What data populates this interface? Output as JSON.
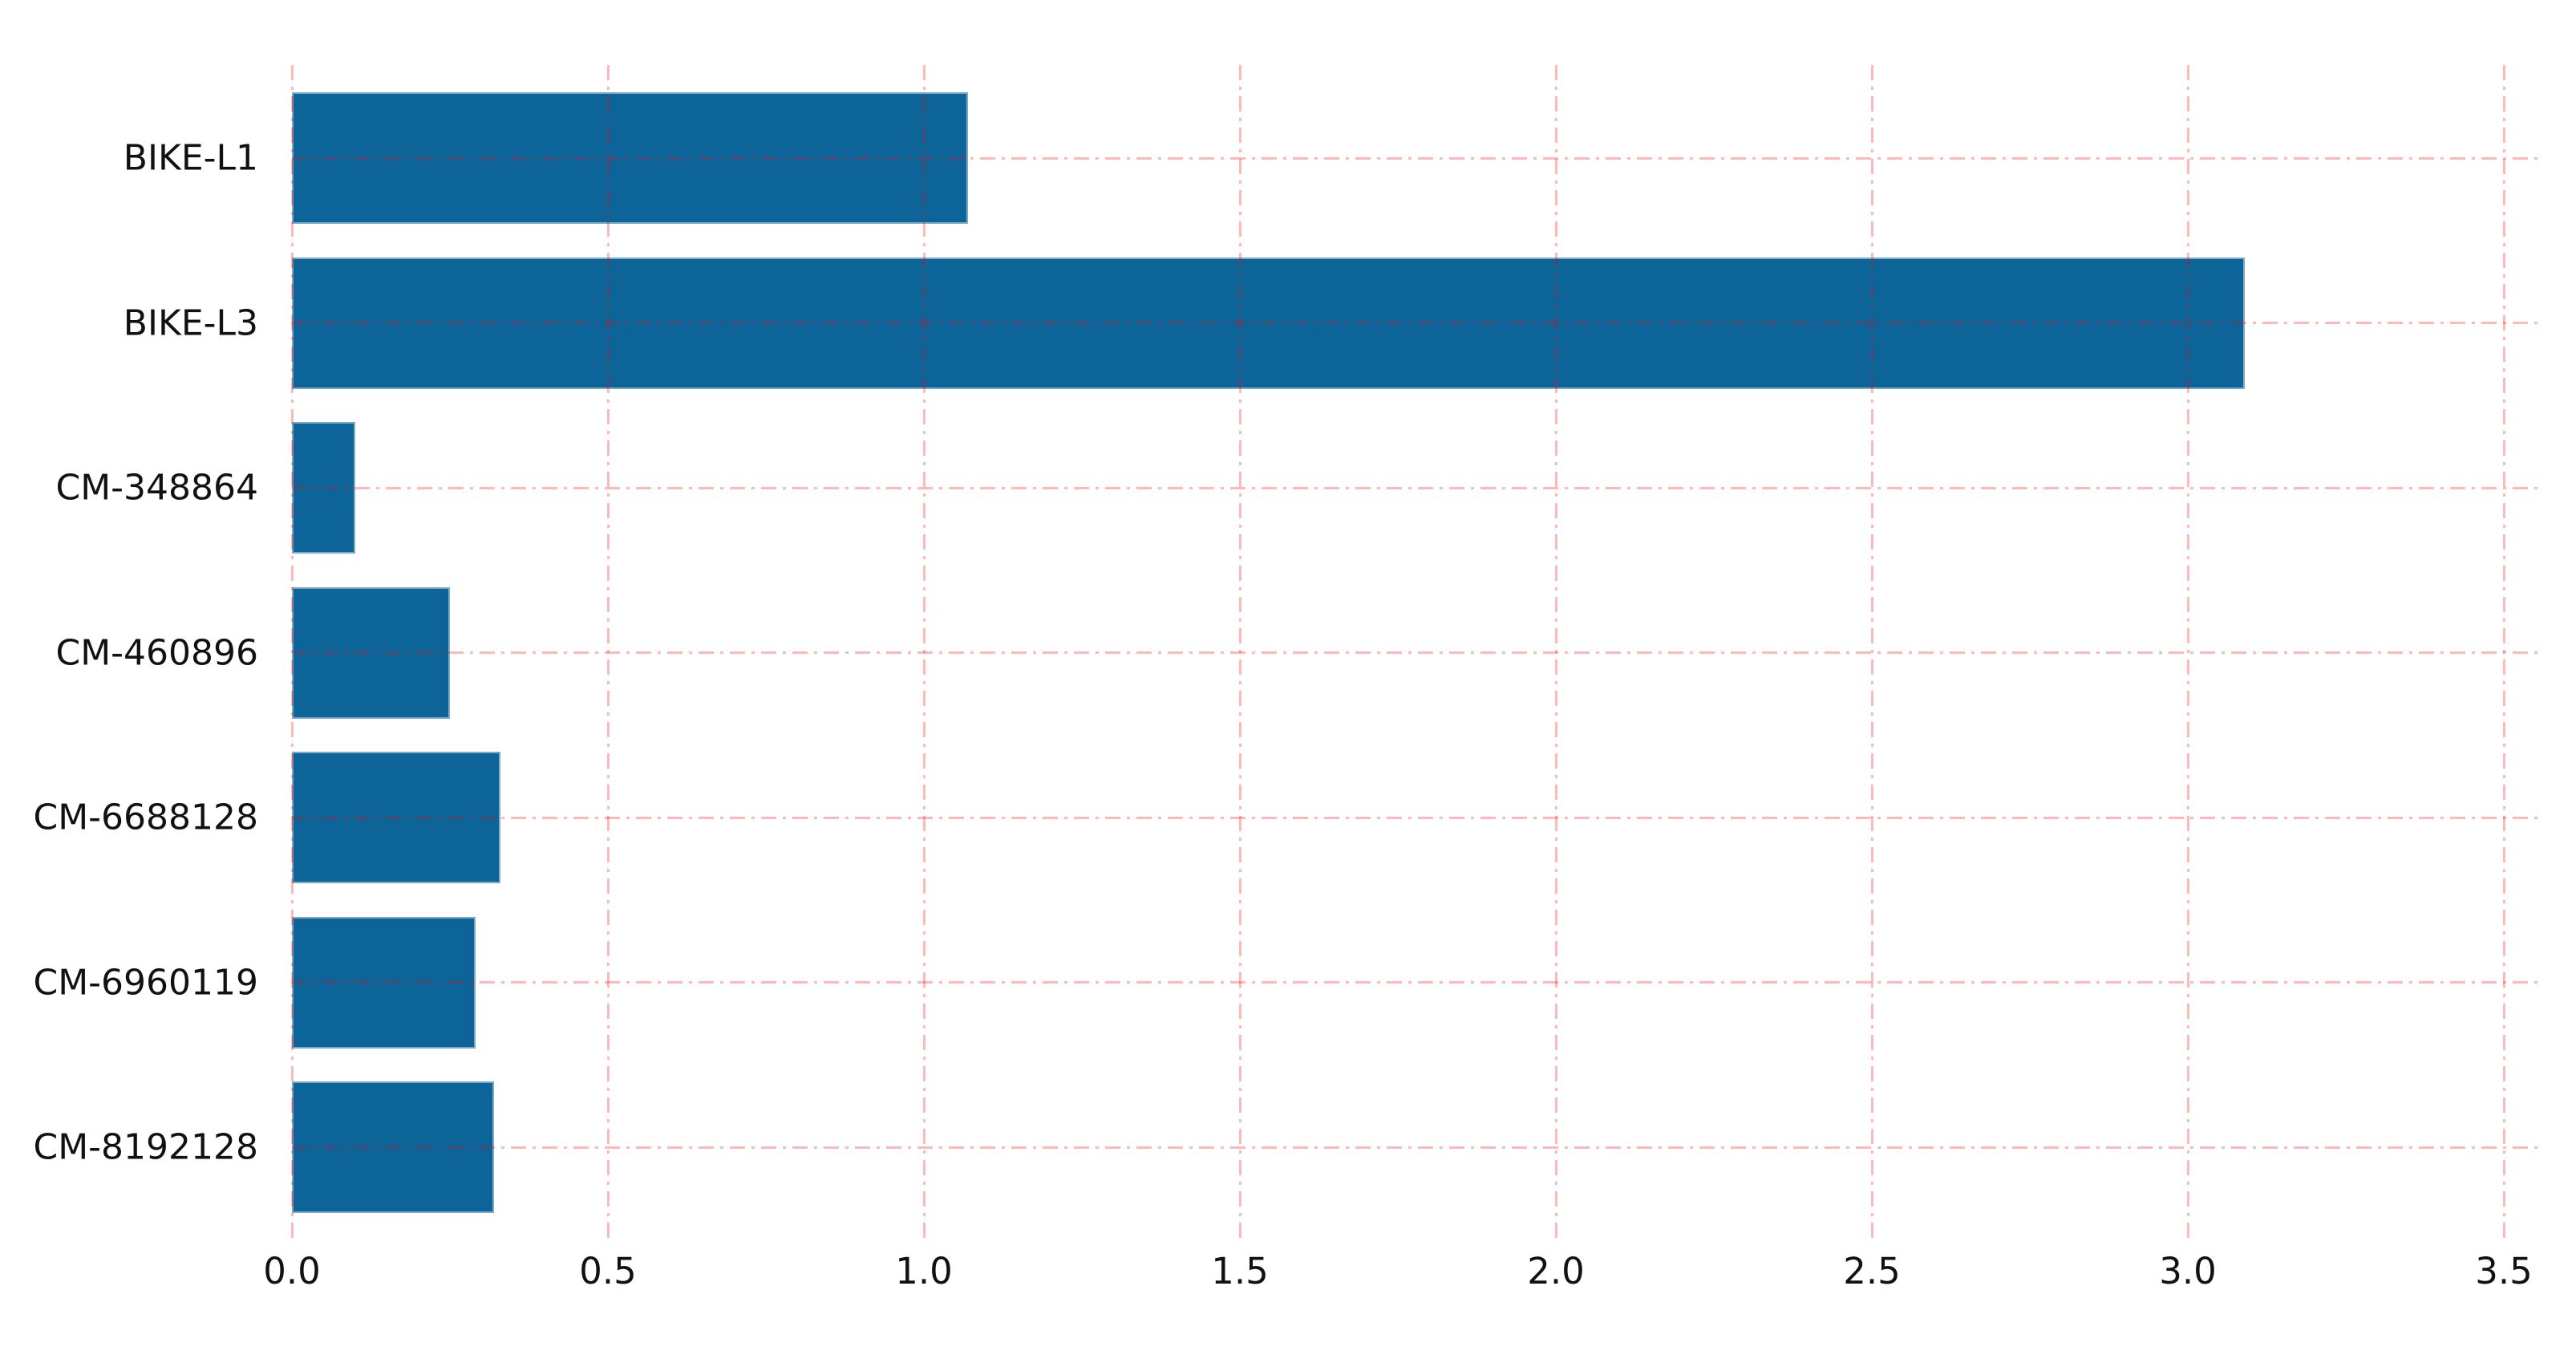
{
  "chart_data": {
    "type": "bar",
    "orientation": "horizontal",
    "title": "",
    "xlabel": "",
    "ylabel": "",
    "categories": [
      "BIKE-L1",
      "BIKE-L3",
      "CM-348864",
      "CM-460896",
      "CM-6688128",
      "CM-6960119",
      "CM-8192128"
    ],
    "values": [
      1.07,
      3.09,
      0.1,
      0.25,
      0.33,
      0.29,
      0.32
    ],
    "xticks": [
      "0.0",
      "0.5",
      "1.0",
      "1.5",
      "2.0",
      "2.5",
      "3.0",
      "3.5"
    ],
    "xlim": [
      0,
      3.55
    ],
    "grid": true,
    "grid_style": "dash-dot",
    "grid_on_top": true,
    "legend": false,
    "colors": {
      "bar": "#0d6499",
      "grid": "rgba(255,0,0,0.28)",
      "tick_text": "#111111",
      "background": "#ffffff"
    }
  }
}
